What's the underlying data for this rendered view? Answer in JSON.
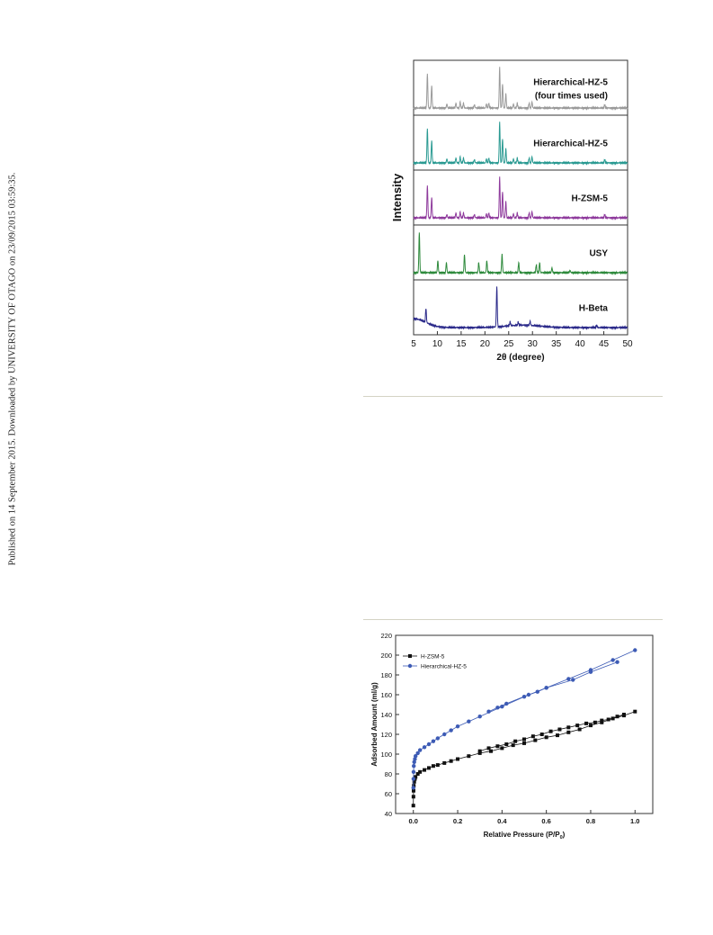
{
  "sidenote": "Published on 14 September 2015. Downloaded by UNIVERSITY OF OTAGO on 23/09/2015 03:59:35.",
  "chart_data": [
    {
      "type": "line",
      "title": "",
      "xlabel": "2θ (degree)",
      "ylabel": "Intensity",
      "xlim": [
        5,
        50
      ],
      "xticks": [
        5,
        10,
        15,
        20,
        25,
        30,
        35,
        40,
        45,
        50
      ],
      "stacked_panels": true,
      "series": [
        {
          "name": "Hierarchical-HZ-5\n(four times used)",
          "label_lines": [
            "Hierarchical-HZ-5",
            "(four times used)"
          ],
          "color": "#9a9a9a",
          "peaks": [
            [
              7.9,
              0.85
            ],
            [
              8.8,
              0.55
            ],
            [
              12.0,
              0.1
            ],
            [
              13.9,
              0.12
            ],
            [
              14.8,
              0.15
            ],
            [
              15.5,
              0.12
            ],
            [
              17.8,
              0.08
            ],
            [
              20.3,
              0.1
            ],
            [
              20.8,
              0.12
            ],
            [
              23.1,
              1.0
            ],
            [
              23.7,
              0.6
            ],
            [
              24.4,
              0.35
            ],
            [
              26.0,
              0.1
            ],
            [
              26.8,
              0.12
            ],
            [
              29.3,
              0.12
            ],
            [
              29.9,
              0.15
            ],
            [
              45.2,
              0.08
            ]
          ]
        },
        {
          "name": "Hierarchical-HZ-5",
          "label_lines": [
            "Hierarchical-HZ-5"
          ],
          "color": "#2a9a92",
          "peaks": [
            [
              7.9,
              0.85
            ],
            [
              8.8,
              0.55
            ],
            [
              12.0,
              0.1
            ],
            [
              13.9,
              0.12
            ],
            [
              14.8,
              0.15
            ],
            [
              15.5,
              0.12
            ],
            [
              17.8,
              0.08
            ],
            [
              20.3,
              0.1
            ],
            [
              20.8,
              0.12
            ],
            [
              23.1,
              1.0
            ],
            [
              23.7,
              0.6
            ],
            [
              24.4,
              0.35
            ],
            [
              26.0,
              0.1
            ],
            [
              26.8,
              0.12
            ],
            [
              29.3,
              0.12
            ],
            [
              29.9,
              0.15
            ],
            [
              45.2,
              0.08
            ]
          ]
        },
        {
          "name": "H-ZSM-5",
          "label_lines": [
            "H-ZSM-5"
          ],
          "color": "#8e3a9c",
          "peaks": [
            [
              7.9,
              0.8
            ],
            [
              8.8,
              0.5
            ],
            [
              12.0,
              0.08
            ],
            [
              13.9,
              0.12
            ],
            [
              14.8,
              0.14
            ],
            [
              15.5,
              0.12
            ],
            [
              17.8,
              0.08
            ],
            [
              20.3,
              0.1
            ],
            [
              20.8,
              0.12
            ],
            [
              23.1,
              1.0
            ],
            [
              23.7,
              0.65
            ],
            [
              24.4,
              0.4
            ],
            [
              26.0,
              0.1
            ],
            [
              26.8,
              0.12
            ],
            [
              29.3,
              0.12
            ],
            [
              29.9,
              0.15
            ],
            [
              45.2,
              0.08
            ]
          ]
        },
        {
          "name": "USY",
          "label_lines": [
            "USY"
          ],
          "color": "#2e8a3c",
          "peaks": [
            [
              6.2,
              1.0
            ],
            [
              10.1,
              0.3
            ],
            [
              11.9,
              0.25
            ],
            [
              15.7,
              0.45
            ],
            [
              18.7,
              0.25
            ],
            [
              20.4,
              0.3
            ],
            [
              23.6,
              0.45
            ],
            [
              27.1,
              0.25
            ],
            [
              30.8,
              0.2
            ],
            [
              31.5,
              0.25
            ],
            [
              34.1,
              0.12
            ],
            [
              37.9,
              0.06
            ]
          ]
        },
        {
          "name": "H-Beta",
          "label_lines": [
            "H-Beta"
          ],
          "color": "#2b2a8a",
          "peaks": [
            [
              7.6,
              0.35
            ],
            [
              22.5,
              1.0
            ],
            [
              25.3,
              0.1
            ],
            [
              27.0,
              0.08
            ],
            [
              29.5,
              0.1
            ],
            [
              43.5,
              0.06
            ]
          ]
        }
      ]
    },
    {
      "type": "scatter",
      "title": "",
      "xlabel": "Relative Pressure (P/P",
      "xlabel_sub": "0",
      "xlabel_end": ")",
      "ylabel": "Adsorbed Amount (ml/g)",
      "xlim": [
        -0.08,
        1.08
      ],
      "ylim": [
        40,
        220
      ],
      "xticks": [
        0.0,
        0.2,
        0.4,
        0.6,
        0.8,
        1.0
      ],
      "xtick_labels": [
        "0.0",
        "0.2",
        "0.4",
        "0.6",
        "0.8",
        "1.0"
      ],
      "yticks": [
        40,
        60,
        80,
        100,
        120,
        140,
        160,
        180,
        200,
        220
      ],
      "legend_position": "top-left",
      "series": [
        {
          "name": "H-ZSM-5",
          "color": "#111111",
          "marker": "square",
          "adsorption": {
            "x": [
              0.0,
              0.0005,
              0.001,
              0.002,
              0.004,
              0.007,
              0.01,
              0.02,
              0.03,
              0.05,
              0.07,
              0.09,
              0.11,
              0.14,
              0.17,
              0.2,
              0.25,
              0.3,
              0.35,
              0.4,
              0.45,
              0.5,
              0.55,
              0.6,
              0.65,
              0.7,
              0.75,
              0.8,
              0.85,
              0.9,
              0.95,
              1.0
            ],
            "y": [
              48,
              57,
              63,
              68,
              72,
              75,
              77,
              80,
              82,
              84,
              86,
              88,
              89,
              91,
              93,
              95,
              98,
              101,
              103,
              106,
              109,
              111,
              114,
              117,
              119,
              122,
              125,
              129,
              132,
              136,
              139,
              143
            ]
          },
          "desorption": {
            "x": [
              0.95,
              0.92,
              0.88,
              0.85,
              0.82,
              0.78,
              0.74,
              0.7,
              0.66,
              0.62,
              0.58,
              0.54,
              0.5,
              0.46,
              0.42,
              0.38,
              0.34,
              0.3
            ],
            "y": [
              140,
              138,
              135,
              134,
              132,
              131,
              129,
              127,
              125,
              123,
              120,
              118,
              115,
              113,
              110,
              108,
              106,
              103
            ]
          }
        },
        {
          "name": "Hierarchical-HZ-5",
          "color": "#3d5bb5",
          "marker": "circle",
          "adsorption": {
            "x": [
              0.0,
              0.0005,
              0.001,
              0.002,
              0.004,
              0.007,
              0.01,
              0.02,
              0.03,
              0.05,
              0.07,
              0.09,
              0.11,
              0.14,
              0.17,
              0.2,
              0.25,
              0.3,
              0.4,
              0.5,
              0.6,
              0.7,
              0.8,
              0.9,
              1.0
            ],
            "y": [
              66,
              75,
              82,
              88,
              92,
              95,
              98,
              101,
              104,
              107,
              110,
              113,
              116,
              120,
              124,
              128,
              133,
              138,
              148,
              158,
              167,
              176,
              185,
              195,
              205
            ]
          },
          "desorption": {
            "x": [
              0.92,
              0.8,
              0.72,
              0.6,
              0.56,
              0.52,
              0.42,
              0.38,
              0.34
            ],
            "y": [
              193,
              183,
              175,
              167,
              163,
              160,
              151,
              147,
              143
            ]
          }
        }
      ]
    }
  ]
}
